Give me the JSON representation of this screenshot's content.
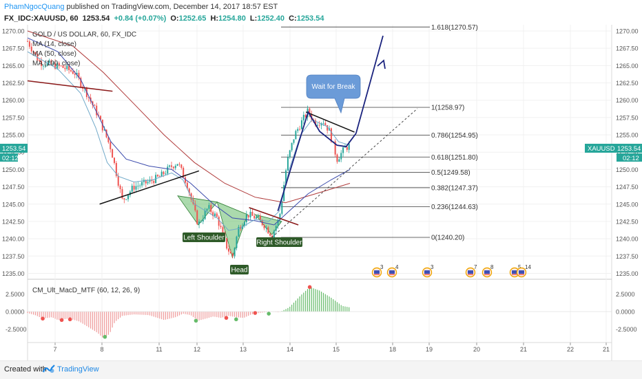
{
  "header": {
    "author": "PhamNgocQuang",
    "published": "published on TradingView.com, December 14, 2017 18:57 EST",
    "symbol": "FX_IDC:XAUUSD, 60",
    "last": "1253.54",
    "change": "+0.84 (+0.07%)",
    "open_label": "O:",
    "open": "1252.65",
    "high_label": "H:",
    "high": "1254.80",
    "low_label": "L:",
    "low": "1252.40",
    "close_label": "C:",
    "close": "1253.54"
  },
  "legend": {
    "title": "GOLD / US DOLLAR, 60, FX_IDC",
    "ma14": "MA (14, close)",
    "ma50": "MA (50, close)",
    "ma100": "MA (100, close)"
  },
  "footer": {
    "created": "Created with",
    "brand": "TradingView"
  },
  "colors": {
    "up": "#26a69a",
    "down": "#ef5350",
    "ma14": "#6fa8c8",
    "ma50": "#3949ab",
    "ma100": "#b03a3a",
    "pattern": "#66bb6a",
    "arrow": "#1a237e",
    "badge": "#26a69a",
    "callout": "#6b9bd8"
  },
  "chart_data": {
    "type": "candlestick",
    "price_ylim": [
      1235,
      1271
    ],
    "y_ticks": [
      "1270.00",
      "1267.50",
      "1265.00",
      "1262.50",
      "1260.00",
      "1257.50",
      "1255.00",
      "1252.50",
      "1250.00",
      "1247.50",
      "1245.00",
      "1242.50",
      "1240.00",
      "1237.50",
      "1235.00"
    ],
    "x_ticks": [
      "7",
      "8",
      "11",
      "12",
      "13",
      "14",
      "15",
      "18",
      "19",
      "20",
      "21",
      "22",
      "21"
    ],
    "price_badge": {
      "value": "1253.54",
      "time": "02:12"
    },
    "symbol_badge": "XAUUSD",
    "fib_levels": [
      {
        "label": "1.618(1270.57)",
        "value": 1270.57
      },
      {
        "label": "1(1258.97)",
        "value": 1258.97
      },
      {
        "label": "0.786(1254.95)",
        "value": 1254.95
      },
      {
        "label": "0.618(1251.80)",
        "value": 1251.8
      },
      {
        "label": "0.5(1249.58)",
        "value": 1249.58
      },
      {
        "label": "0.382(1247.37)",
        "value": 1247.37
      },
      {
        "label": "0.236(1244.63)",
        "value": 1244.63
      },
      {
        "label": "0(1240.20)",
        "value": 1240.2
      }
    ],
    "annotations": {
      "left_shoulder": "Left Shoulder",
      "head": "Head",
      "right_shoulder": "Right Shoulder",
      "callout": "Wait for Break"
    },
    "anchors": [
      {
        "x": 0,
        "p": 1268.5
      },
      {
        "x": 16,
        "p": 1265.5
      },
      {
        "x": 45,
        "p": 1264.8
      },
      {
        "x": 62,
        "p": 1264.0
      },
      {
        "x": 78,
        "p": 1261.0
      },
      {
        "x": 92,
        "p": 1258.0
      },
      {
        "x": 110,
        "p": 1253.0
      },
      {
        "x": 125,
        "p": 1245.5
      },
      {
        "x": 140,
        "p": 1247.5
      },
      {
        "x": 160,
        "p": 1248.2
      },
      {
        "x": 175,
        "p": 1249.0
      },
      {
        "x": 190,
        "p": 1250.5
      },
      {
        "x": 198,
        "p": 1251.0
      },
      {
        "x": 210,
        "p": 1248.0
      },
      {
        "x": 225,
        "p": 1242.0
      },
      {
        "x": 238,
        "p": 1244.5
      },
      {
        "x": 250,
        "p": 1243.0
      },
      {
        "x": 262,
        "p": 1239.0
      },
      {
        "x": 270,
        "p": 1237.3
      },
      {
        "x": 278,
        "p": 1241.5
      },
      {
        "x": 290,
        "p": 1243.5
      },
      {
        "x": 302,
        "p": 1243.0
      },
      {
        "x": 312,
        "p": 1242.0
      },
      {
        "x": 322,
        "p": 1240.5
      },
      {
        "x": 332,
        "p": 1243.0
      },
      {
        "x": 342,
        "p": 1251.0
      },
      {
        "x": 352,
        "p": 1255.0
      },
      {
        "x": 362,
        "p": 1257.0
      },
      {
        "x": 370,
        "p": 1258.5
      },
      {
        "x": 378,
        "p": 1256.8
      },
      {
        "x": 390,
        "p": 1257.0
      },
      {
        "x": 398,
        "p": 1255.5
      },
      {
        "x": 408,
        "p": 1251.5
      },
      {
        "x": 418,
        "p": 1253.0
      },
      {
        "x": 425,
        "p": 1253.54
      }
    ],
    "ma14": [
      [
        0,
        1267
      ],
      [
        40,
        1264.5
      ],
      [
        70,
        1261
      ],
      [
        90,
        1256
      ],
      [
        105,
        1251
      ],
      [
        120,
        1249
      ],
      [
        140,
        1248.2
      ],
      [
        165,
        1248.5
      ],
      [
        190,
        1249.5
      ],
      [
        205,
        1248.5
      ],
      [
        220,
        1245
      ],
      [
        235,
        1244
      ],
      [
        250,
        1243
      ],
      [
        265,
        1241.2
      ],
      [
        280,
        1241.5
      ],
      [
        300,
        1242.8
      ],
      [
        318,
        1242.5
      ],
      [
        332,
        1244
      ],
      [
        345,
        1250
      ],
      [
        360,
        1255
      ],
      [
        375,
        1257.2
      ],
      [
        395,
        1256.2
      ],
      [
        410,
        1254
      ],
      [
        425,
        1253.5
      ]
    ],
    "ma50": [
      [
        0,
        1269
      ],
      [
        40,
        1267
      ],
      [
        70,
        1263
      ],
      [
        90,
        1258.5
      ],
      [
        110,
        1254
      ],
      [
        130,
        1251.5
      ],
      [
        160,
        1250.5
      ],
      [
        190,
        1250
      ],
      [
        215,
        1248
      ],
      [
        245,
        1245
      ],
      [
        270,
        1243
      ],
      [
        300,
        1242.6
      ],
      [
        325,
        1242
      ],
      [
        345,
        1244
      ],
      [
        370,
        1246.5
      ],
      [
        400,
        1248.5
      ],
      [
        425,
        1250
      ]
    ],
    "ma100": [
      [
        0,
        1270
      ],
      [
        60,
        1267.8
      ],
      [
        100,
        1264
      ],
      [
        140,
        1259.5
      ],
      [
        180,
        1255
      ],
      [
        220,
        1251
      ],
      [
        260,
        1248
      ],
      [
        300,
        1246
      ],
      [
        340,
        1245.2
      ],
      [
        380,
        1246.5
      ],
      [
        425,
        1248
      ]
    ],
    "macd": {
      "label": "CM_Ult_MacD_MTF (60, 12, 26, 9)",
      "ylim": [
        -3.4,
        3.4
      ],
      "y_ticks": [
        "2.5000",
        "0.0000",
        "-2.5000"
      ],
      "anchors": [
        [
          0,
          -0.2
        ],
        [
          10,
          -0.5
        ],
        [
          20,
          -1.0
        ],
        [
          32,
          -0.8
        ],
        [
          40,
          -1.2
        ],
        [
          55,
          -1.0
        ],
        [
          68,
          -1.4
        ],
        [
          80,
          -2.2
        ],
        [
          92,
          -3.0
        ],
        [
          100,
          -3.8
        ],
        [
          108,
          -3.2
        ],
        [
          115,
          -1.5
        ],
        [
          125,
          -0.6
        ],
        [
          140,
          -0.4
        ],
        [
          160,
          -0.5
        ],
        [
          180,
          -1.2
        ],
        [
          195,
          -0.8
        ],
        [
          205,
          -0.3
        ],
        [
          215,
          -0.5
        ],
        [
          225,
          -1.3
        ],
        [
          235,
          -1.0
        ],
        [
          245,
          -0.7
        ],
        [
          255,
          -0.9
        ],
        [
          265,
          -0.6
        ],
        [
          275,
          -0.8
        ],
        [
          285,
          -0.9
        ],
        [
          295,
          -0.4
        ],
        [
          305,
          -0.2
        ],
        [
          320,
          0.0
        ],
        [
          332,
          -0.1
        ],
        [
          345,
          0.6
        ],
        [
          360,
          2.3
        ],
        [
          372,
          3.5
        ],
        [
          385,
          3.0
        ],
        [
          400,
          2.0
        ],
        [
          415,
          0.8
        ],
        [
          425,
          0.6
        ]
      ]
    }
  }
}
